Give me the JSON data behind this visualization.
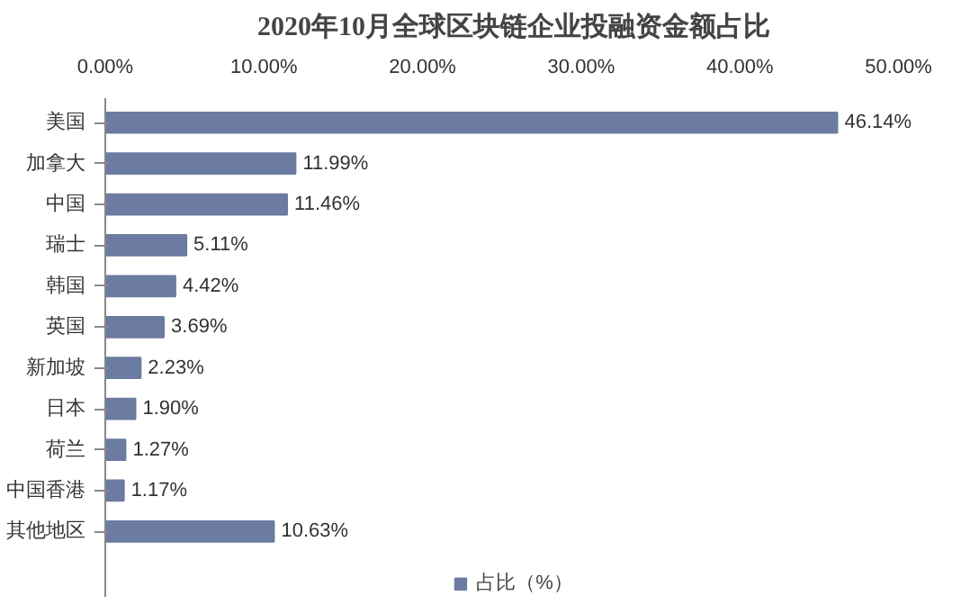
{
  "chart_data": {
    "type": "bar",
    "orientation": "horizontal",
    "title": "2020年10月全球区块链企业投融资金额占比",
    "categories": [
      "美国",
      "加拿大",
      "中国",
      "瑞士",
      "韩国",
      "英国",
      "新加坡",
      "日本",
      "荷兰",
      "中国香港",
      "其他地区"
    ],
    "series": [
      {
        "name": "占比（%）",
        "color": "#6b7ba1",
        "values": [
          46.14,
          11.99,
          11.46,
          5.11,
          4.42,
          3.69,
          2.23,
          1.9,
          1.27,
          1.17,
          10.63
        ],
        "value_labels": [
          "46.14%",
          "11.99%",
          "11.46%",
          "5.11%",
          "4.42%",
          "3.69%",
          "2.23%",
          "1.90%",
          "1.27%",
          "1.17%",
          "10.63%"
        ]
      }
    ],
    "xlim": [
      0,
      50
    ],
    "xticks": [
      {
        "value": 0,
        "label": "0.00%"
      },
      {
        "value": 10,
        "label": "10.00%"
      },
      {
        "value": 20,
        "label": "20.00%"
      },
      {
        "value": 30,
        "label": "30.00%"
      },
      {
        "value": 40,
        "label": "40.00%"
      },
      {
        "value": 50,
        "label": "50.00%"
      }
    ],
    "grid": false,
    "legend": "bottom"
  }
}
